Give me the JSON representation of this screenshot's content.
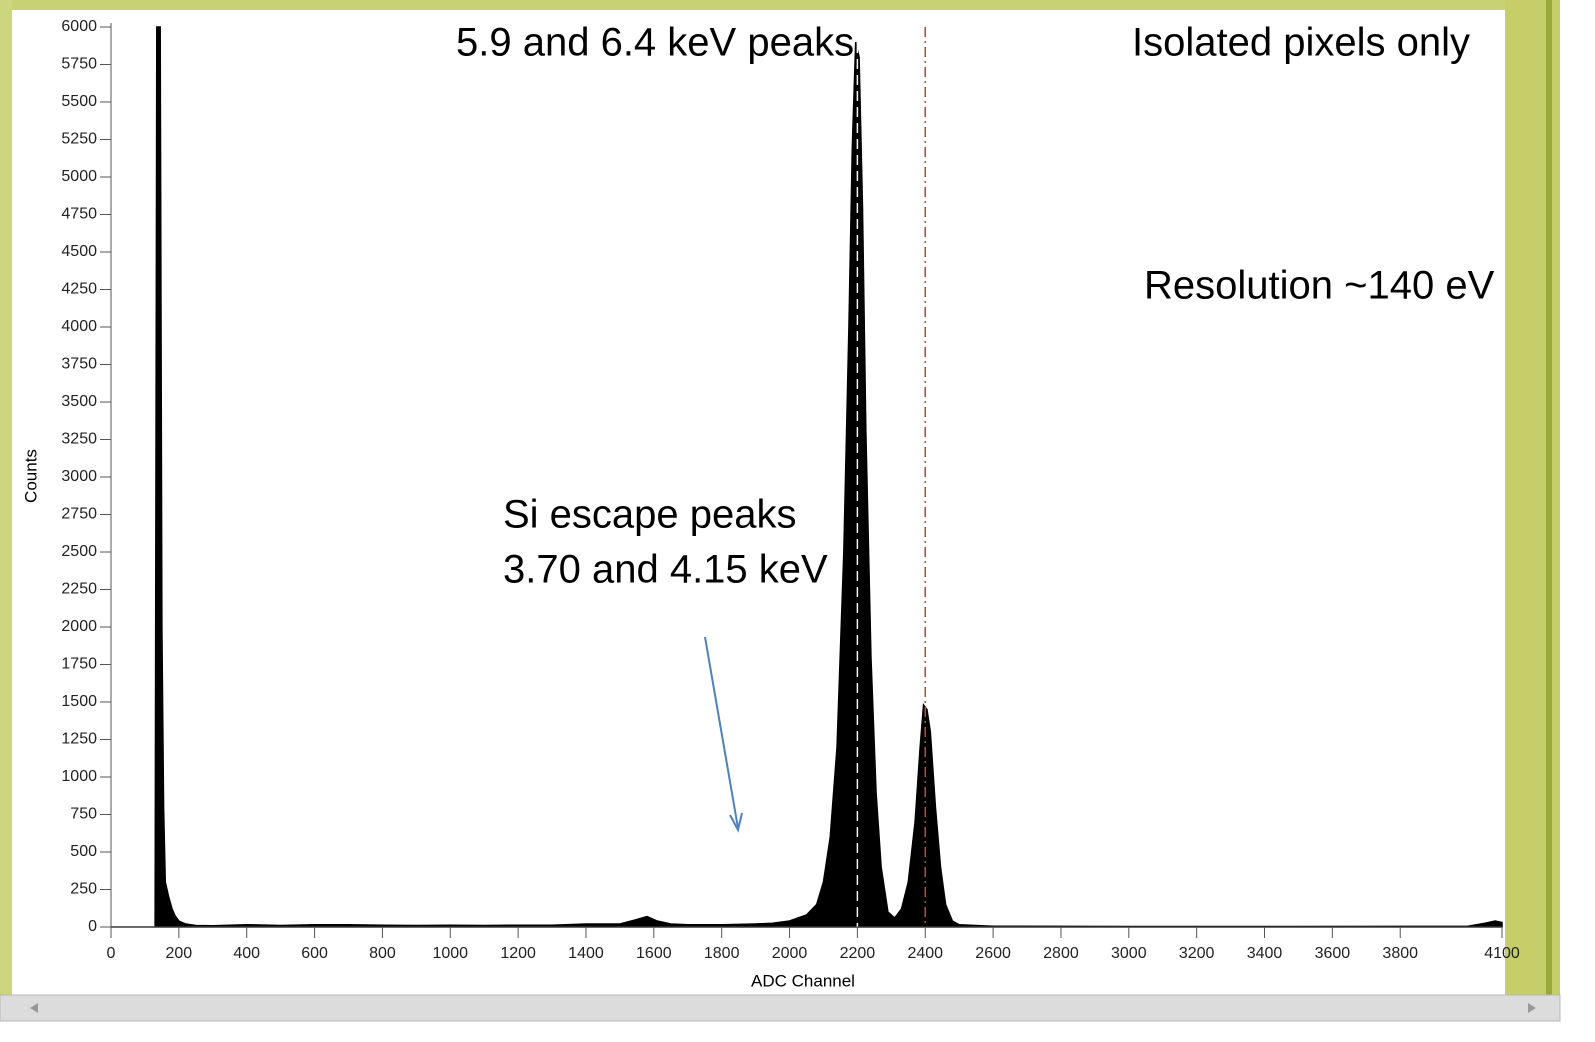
{
  "chart_data": {
    "type": "area",
    "x_label": "ADC Channel",
    "y_label": "Counts",
    "annotations": [
      {
        "text": "5.9 and 6.4 keV peaks"
      },
      {
        "text": "Isolated pixels only"
      },
      {
        "text": "Resolution ~140 eV"
      },
      {
        "text": "Si escape peaks"
      },
      {
        "text": "3.70 and 4.15 keV"
      }
    ],
    "x": [
      0,
      130,
      135,
      145,
      150,
      155,
      160,
      170,
      180,
      190,
      200,
      220,
      250,
      300,
      400,
      500,
      600,
      700,
      800,
      900,
      1000,
      1100,
      1200,
      1300,
      1400,
      1500,
      1550,
      1580,
      1610,
      1650,
      1700,
      1800,
      1900,
      1950,
      2000,
      2050,
      2080,
      2100,
      2120,
      2140,
      2160,
      2175,
      2185,
      2195,
      2205,
      2215,
      2225,
      2240,
      2255,
      2270,
      2290,
      2310,
      2330,
      2350,
      2370,
      2385,
      2395,
      2405,
      2415,
      2430,
      2445,
      2460,
      2480,
      2500,
      2600,
      3000,
      3500,
      4000,
      4050,
      4080,
      4100
    ],
    "values": [
      0,
      0,
      6000,
      6000,
      2000,
      800,
      300,
      200,
      120,
      70,
      40,
      20,
      10,
      8,
      15,
      10,
      15,
      15,
      12,
      10,
      12,
      10,
      12,
      12,
      20,
      20,
      50,
      70,
      40,
      20,
      15,
      15,
      20,
      25,
      40,
      80,
      150,
      300,
      600,
      1200,
      2500,
      4000,
      5200,
      5900,
      5800,
      4800,
      3300,
      1800,
      900,
      400,
      100,
      60,
      120,
      300,
      700,
      1200,
      1480,
      1450,
      1300,
      800,
      400,
      150,
      40,
      15,
      5,
      3,
      3,
      5,
      25,
      40,
      30
    ],
    "color": "#000000",
    "cursors": [
      {
        "x": 2200,
        "color": "#ffffff"
      },
      {
        "x": 2400,
        "color": "#b0502a"
      }
    ],
    "xlim": [
      0,
      4100
    ],
    "ylim": [
      0,
      6000
    ],
    "xticks": [
      0,
      200,
      400,
      600,
      800,
      1000,
      1200,
      1400,
      1600,
      1800,
      2000,
      2200,
      2400,
      2600,
      2800,
      3000,
      3200,
      3400,
      3600,
      3800,
      4100
    ],
    "yticks": [
      0,
      250,
      500,
      750,
      1000,
      1250,
      1500,
      1750,
      2000,
      2250,
      2500,
      2750,
      3000,
      3250,
      3500,
      3750,
      4000,
      4250,
      4500,
      4750,
      5000,
      5250,
      5500,
      5750,
      6000
    ]
  }
}
